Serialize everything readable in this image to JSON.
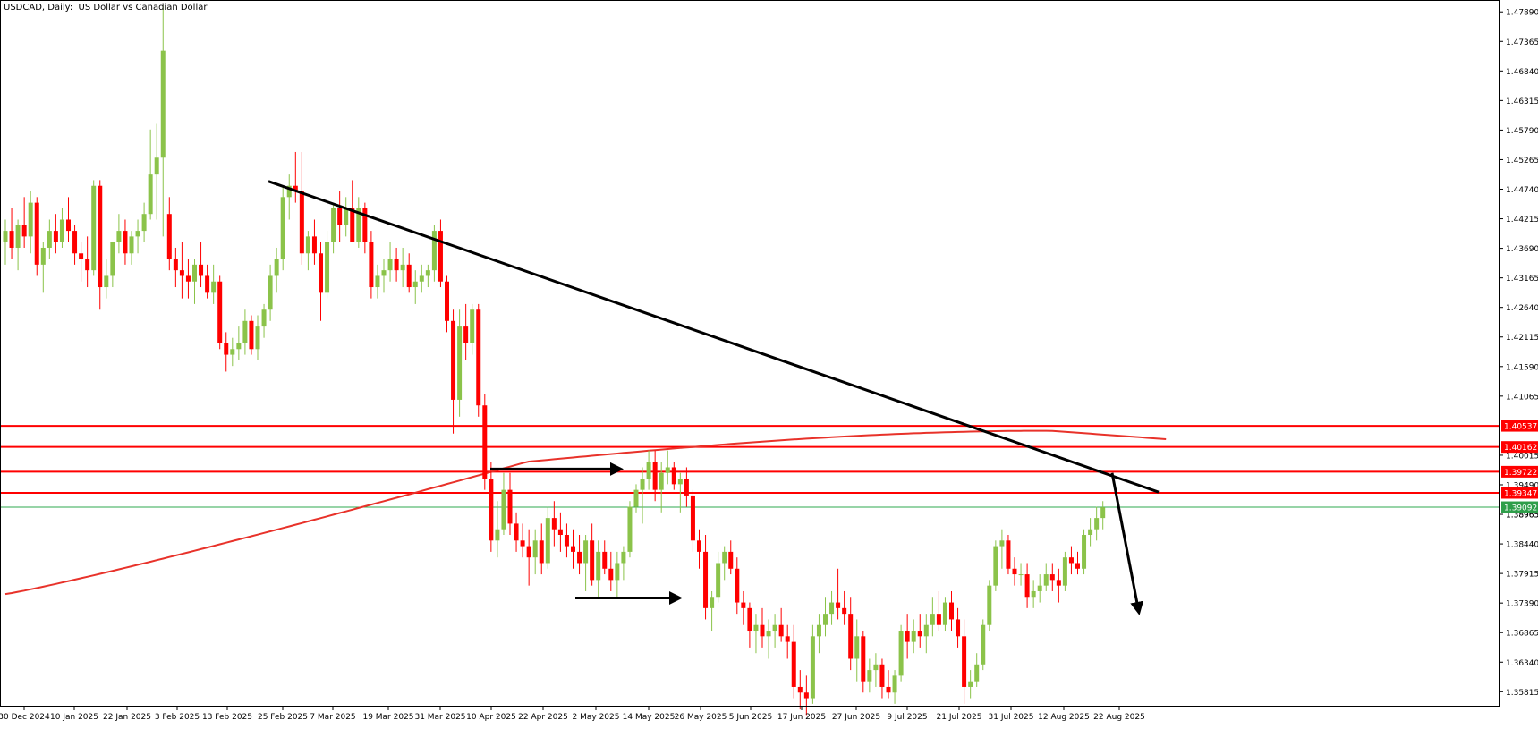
{
  "title": "USDCAD, Daily:  US Dollar vs Canadian Dollar",
  "colors": {
    "background": "#ffffff",
    "bull": "#8bc34a",
    "bear": "#ff0000",
    "wick": "#000000",
    "level_line": "#ff0000",
    "ma_line": "#e8322a",
    "current_price_line": "#2fa84f",
    "current_price_bg": "#2e9e4a",
    "trendline": "#000000",
    "axis_text": "#000000"
  },
  "chart_data": {
    "type": "candlestick",
    "symbol": "USDCAD",
    "timeframe": "Daily",
    "ylim": [
      1.3555,
      1.481
    ],
    "y_ticks": [
      "1.47890",
      "1.47365",
      "1.46840",
      "1.46315",
      "1.45790",
      "1.45265",
      "1.44740",
      "1.44215",
      "1.43690",
      "1.43165",
      "1.42640",
      "1.42115",
      "1.41590",
      "1.41065",
      "1.40015",
      "1.39490",
      "1.38965",
      "1.38440",
      "1.37915",
      "1.37390",
      "1.36865",
      "1.36340",
      "1.35815"
    ],
    "x_ticks": [
      "30 Dec 2024",
      "10 Jan 2025",
      "22 Jan 2025",
      "3 Feb 2025",
      "13 Feb 2025",
      "25 Feb 2025",
      "7 Mar 2025",
      "19 Mar 2025",
      "31 Mar 2025",
      "10 Apr 2025",
      "22 Apr 2025",
      "2 May 2025",
      "14 May 2025",
      "26 May 2025",
      "5 Jun 2025",
      "17 Jun 2025",
      "27 Jun 2025",
      "9 Jul 2025",
      "21 Jul 2025",
      "31 Jul 2025",
      "12 Aug 2025",
      "22 Aug 2025"
    ],
    "horizontal_levels": [
      "1.40537",
      "1.40162",
      "1.39722",
      "1.39347"
    ],
    "current_price": "1.39092",
    "hidden_tick_under_label": "1.38965",
    "candles": [
      {
        "o": 1.438,
        "h": 1.442,
        "l": 1.434,
        "c": 1.44
      },
      {
        "o": 1.44,
        "h": 1.444,
        "l": 1.435,
        "c": 1.437
      },
      {
        "o": 1.437,
        "h": 1.442,
        "l": 1.433,
        "c": 1.441
      },
      {
        "o": 1.441,
        "h": 1.446,
        "l": 1.437,
        "c": 1.439
      },
      {
        "o": 1.439,
        "h": 1.447,
        "l": 1.436,
        "c": 1.445
      },
      {
        "o": 1.445,
        "h": 1.446,
        "l": 1.432,
        "c": 1.434
      },
      {
        "o": 1.434,
        "h": 1.438,
        "l": 1.429,
        "c": 1.437
      },
      {
        "o": 1.437,
        "h": 1.442,
        "l": 1.435,
        "c": 1.44
      },
      {
        "o": 1.44,
        "h": 1.443,
        "l": 1.436,
        "c": 1.438
      },
      {
        "o": 1.438,
        "h": 1.444,
        "l": 1.437,
        "c": 1.442
      },
      {
        "o": 1.442,
        "h": 1.446,
        "l": 1.438,
        "c": 1.44
      },
      {
        "o": 1.44,
        "h": 1.441,
        "l": 1.434,
        "c": 1.436
      },
      {
        "o": 1.436,
        "h": 1.438,
        "l": 1.431,
        "c": 1.435
      },
      {
        "o": 1.435,
        "h": 1.439,
        "l": 1.43,
        "c": 1.433
      },
      {
        "o": 1.433,
        "h": 1.449,
        "l": 1.432,
        "c": 1.448
      },
      {
        "o": 1.448,
        "h": 1.449,
        "l": 1.426,
        "c": 1.43
      },
      {
        "o": 1.43,
        "h": 1.435,
        "l": 1.428,
        "c": 1.432
      },
      {
        "o": 1.432,
        "h": 1.438,
        "l": 1.43,
        "c": 1.438
      },
      {
        "o": 1.438,
        "h": 1.443,
        "l": 1.436,
        "c": 1.44
      },
      {
        "o": 1.44,
        "h": 1.442,
        "l": 1.434,
        "c": 1.436
      },
      {
        "o": 1.436,
        "h": 1.44,
        "l": 1.434,
        "c": 1.439
      },
      {
        "o": 1.439,
        "h": 1.442,
        "l": 1.436,
        "c": 1.44
      },
      {
        "o": 1.44,
        "h": 1.445,
        "l": 1.438,
        "c": 1.443
      },
      {
        "o": 1.443,
        "h": 1.458,
        "l": 1.442,
        "c": 1.45
      },
      {
        "o": 1.45,
        "h": 1.459,
        "l": 1.442,
        "c": 1.453
      },
      {
        "o": 1.453,
        "h": 1.48,
        "l": 1.439,
        "c": 1.472
      },
      {
        "o": 1.443,
        "h": 1.446,
        "l": 1.433,
        "c": 1.435
      },
      {
        "o": 1.435,
        "h": 1.437,
        "l": 1.43,
        "c": 1.433
      },
      {
        "o": 1.433,
        "h": 1.438,
        "l": 1.428,
        "c": 1.432
      },
      {
        "o": 1.432,
        "h": 1.435,
        "l": 1.428,
        "c": 1.431
      },
      {
        "o": 1.431,
        "h": 1.435,
        "l": 1.427,
        "c": 1.434
      },
      {
        "o": 1.434,
        "h": 1.438,
        "l": 1.43,
        "c": 1.432
      },
      {
        "o": 1.432,
        "h": 1.434,
        "l": 1.428,
        "c": 1.429
      },
      {
        "o": 1.429,
        "h": 1.434,
        "l": 1.427,
        "c": 1.431
      },
      {
        "o": 1.431,
        "h": 1.432,
        "l": 1.419,
        "c": 1.42
      },
      {
        "o": 1.42,
        "h": 1.422,
        "l": 1.415,
        "c": 1.418
      },
      {
        "o": 1.418,
        "h": 1.421,
        "l": 1.416,
        "c": 1.419
      },
      {
        "o": 1.419,
        "h": 1.423,
        "l": 1.417,
        "c": 1.42
      },
      {
        "o": 1.42,
        "h": 1.426,
        "l": 1.418,
        "c": 1.424
      },
      {
        "o": 1.424,
        "h": 1.425,
        "l": 1.418,
        "c": 1.419
      },
      {
        "o": 1.419,
        "h": 1.425,
        "l": 1.417,
        "c": 1.423
      },
      {
        "o": 1.423,
        "h": 1.427,
        "l": 1.421,
        "c": 1.426
      },
      {
        "o": 1.426,
        "h": 1.434,
        "l": 1.424,
        "c": 1.432
      },
      {
        "o": 1.432,
        "h": 1.437,
        "l": 1.429,
        "c": 1.435
      },
      {
        "o": 1.435,
        "h": 1.448,
        "l": 1.433,
        "c": 1.446
      },
      {
        "o": 1.446,
        "h": 1.45,
        "l": 1.442,
        "c": 1.448
      },
      {
        "o": 1.448,
        "h": 1.454,
        "l": 1.445,
        "c": 1.447
      },
      {
        "o": 1.447,
        "h": 1.454,
        "l": 1.434,
        "c": 1.436
      },
      {
        "o": 1.436,
        "h": 1.44,
        "l": 1.433,
        "c": 1.439
      },
      {
        "o": 1.439,
        "h": 1.442,
        "l": 1.434,
        "c": 1.436
      },
      {
        "o": 1.436,
        "h": 1.438,
        "l": 1.424,
        "c": 1.429
      },
      {
        "o": 1.429,
        "h": 1.44,
        "l": 1.428,
        "c": 1.438
      },
      {
        "o": 1.438,
        "h": 1.445,
        "l": 1.436,
        "c": 1.444
      },
      {
        "o": 1.444,
        "h": 1.447,
        "l": 1.438,
        "c": 1.441
      },
      {
        "o": 1.441,
        "h": 1.446,
        "l": 1.439,
        "c": 1.444
      },
      {
        "o": 1.444,
        "h": 1.449,
        "l": 1.438,
        "c": 1.438
      },
      {
        "o": 1.438,
        "h": 1.446,
        "l": 1.437,
        "c": 1.444
      },
      {
        "o": 1.444,
        "h": 1.445,
        "l": 1.436,
        "c": 1.438
      },
      {
        "o": 1.438,
        "h": 1.44,
        "l": 1.428,
        "c": 1.43
      },
      {
        "o": 1.43,
        "h": 1.434,
        "l": 1.428,
        "c": 1.432
      },
      {
        "o": 1.432,
        "h": 1.435,
        "l": 1.429,
        "c": 1.433
      },
      {
        "o": 1.433,
        "h": 1.438,
        "l": 1.431,
        "c": 1.435
      },
      {
        "o": 1.435,
        "h": 1.437,
        "l": 1.431,
        "c": 1.433
      },
      {
        "o": 1.433,
        "h": 1.437,
        "l": 1.43,
        "c": 1.434
      },
      {
        "o": 1.434,
        "h": 1.436,
        "l": 1.429,
        "c": 1.43
      },
      {
        "o": 1.43,
        "h": 1.433,
        "l": 1.427,
        "c": 1.431
      },
      {
        "o": 1.431,
        "h": 1.434,
        "l": 1.429,
        "c": 1.432
      },
      {
        "o": 1.432,
        "h": 1.434,
        "l": 1.43,
        "c": 1.433
      },
      {
        "o": 1.433,
        "h": 1.441,
        "l": 1.431,
        "c": 1.44
      },
      {
        "o": 1.44,
        "h": 1.442,
        "l": 1.43,
        "c": 1.431
      },
      {
        "o": 1.431,
        "h": 1.432,
        "l": 1.422,
        "c": 1.424
      },
      {
        "o": 1.424,
        "h": 1.426,
        "l": 1.404,
        "c": 1.41
      },
      {
        "o": 1.41,
        "h": 1.426,
        "l": 1.407,
        "c": 1.423
      },
      {
        "o": 1.423,
        "h": 1.427,
        "l": 1.417,
        "c": 1.42
      },
      {
        "o": 1.42,
        "h": 1.427,
        "l": 1.418,
        "c": 1.426
      },
      {
        "o": 1.426,
        "h": 1.427,
        "l": 1.407,
        "c": 1.409
      },
      {
        "o": 1.409,
        "h": 1.411,
        "l": 1.394,
        "c": 1.396
      },
      {
        "o": 1.396,
        "h": 1.399,
        "l": 1.383,
        "c": 1.385
      },
      {
        "o": 1.385,
        "h": 1.392,
        "l": 1.382,
        "c": 1.387
      },
      {
        "o": 1.387,
        "h": 1.397,
        "l": 1.386,
        "c": 1.394
      },
      {
        "o": 1.394,
        "h": 1.397,
        "l": 1.386,
        "c": 1.388
      },
      {
        "o": 1.388,
        "h": 1.39,
        "l": 1.383,
        "c": 1.385
      },
      {
        "o": 1.385,
        "h": 1.388,
        "l": 1.382,
        "c": 1.384
      },
      {
        "o": 1.384,
        "h": 1.387,
        "l": 1.377,
        "c": 1.382
      },
      {
        "o": 1.382,
        "h": 1.387,
        "l": 1.379,
        "c": 1.385
      },
      {
        "o": 1.385,
        "h": 1.388,
        "l": 1.379,
        "c": 1.381
      },
      {
        "o": 1.381,
        "h": 1.391,
        "l": 1.38,
        "c": 1.389
      },
      {
        "o": 1.389,
        "h": 1.392,
        "l": 1.384,
        "c": 1.387
      },
      {
        "o": 1.387,
        "h": 1.39,
        "l": 1.383,
        "c": 1.386
      },
      {
        "o": 1.386,
        "h": 1.388,
        "l": 1.382,
        "c": 1.384
      },
      {
        "o": 1.384,
        "h": 1.387,
        "l": 1.38,
        "c": 1.383
      },
      {
        "o": 1.383,
        "h": 1.386,
        "l": 1.379,
        "c": 1.381
      },
      {
        "o": 1.381,
        "h": 1.386,
        "l": 1.376,
        "c": 1.385
      },
      {
        "o": 1.385,
        "h": 1.388,
        "l": 1.377,
        "c": 1.378
      },
      {
        "o": 1.378,
        "h": 1.385,
        "l": 1.375,
        "c": 1.383
      },
      {
        "o": 1.383,
        "h": 1.385,
        "l": 1.379,
        "c": 1.38
      },
      {
        "o": 1.38,
        "h": 1.383,
        "l": 1.376,
        "c": 1.378
      },
      {
        "o": 1.378,
        "h": 1.383,
        "l": 1.375,
        "c": 1.381
      },
      {
        "o": 1.381,
        "h": 1.384,
        "l": 1.378,
        "c": 1.383
      },
      {
        "o": 1.383,
        "h": 1.392,
        "l": 1.382,
        "c": 1.391
      },
      {
        "o": 1.391,
        "h": 1.395,
        "l": 1.39,
        "c": 1.394
      },
      {
        "o": 1.394,
        "h": 1.398,
        "l": 1.388,
        "c": 1.396
      },
      {
        "o": 1.396,
        "h": 1.401,
        "l": 1.394,
        "c": 1.399
      },
      {
        "o": 1.399,
        "h": 1.401,
        "l": 1.392,
        "c": 1.394
      },
      {
        "o": 1.394,
        "h": 1.399,
        "l": 1.39,
        "c": 1.397
      },
      {
        "o": 1.397,
        "h": 1.401,
        "l": 1.395,
        "c": 1.398
      },
      {
        "o": 1.398,
        "h": 1.399,
        "l": 1.394,
        "c": 1.395
      },
      {
        "o": 1.395,
        "h": 1.397,
        "l": 1.39,
        "c": 1.396
      },
      {
        "o": 1.396,
        "h": 1.398,
        "l": 1.391,
        "c": 1.393
      },
      {
        "o": 1.393,
        "h": 1.394,
        "l": 1.383,
        "c": 1.385
      },
      {
        "o": 1.385,
        "h": 1.387,
        "l": 1.38,
        "c": 1.383
      },
      {
        "o": 1.383,
        "h": 1.386,
        "l": 1.371,
        "c": 1.373
      },
      {
        "o": 1.373,
        "h": 1.376,
        "l": 1.369,
        "c": 1.375
      },
      {
        "o": 1.375,
        "h": 1.383,
        "l": 1.374,
        "c": 1.381
      },
      {
        "o": 1.381,
        "h": 1.384,
        "l": 1.378,
        "c": 1.383
      },
      {
        "o": 1.383,
        "h": 1.385,
        "l": 1.379,
        "c": 1.38
      },
      {
        "o": 1.38,
        "h": 1.382,
        "l": 1.372,
        "c": 1.374
      },
      {
        "o": 1.374,
        "h": 1.376,
        "l": 1.37,
        "c": 1.373
      },
      {
        "o": 1.373,
        "h": 1.374,
        "l": 1.366,
        "c": 1.369
      },
      {
        "o": 1.369,
        "h": 1.372,
        "l": 1.365,
        "c": 1.37
      },
      {
        "o": 1.37,
        "h": 1.373,
        "l": 1.366,
        "c": 1.368
      },
      {
        "o": 1.368,
        "h": 1.371,
        "l": 1.364,
        "c": 1.369
      },
      {
        "o": 1.369,
        "h": 1.372,
        "l": 1.366,
        "c": 1.37
      },
      {
        "o": 1.37,
        "h": 1.373,
        "l": 1.367,
        "c": 1.368
      },
      {
        "o": 1.368,
        "h": 1.37,
        "l": 1.364,
        "c": 1.367
      },
      {
        "o": 1.367,
        "h": 1.37,
        "l": 1.357,
        "c": 1.359
      },
      {
        "o": 1.359,
        "h": 1.362,
        "l": 1.355,
        "c": 1.358
      },
      {
        "o": 1.358,
        "h": 1.361,
        "l": 1.354,
        "c": 1.357
      },
      {
        "o": 1.357,
        "h": 1.37,
        "l": 1.356,
        "c": 1.368
      },
      {
        "o": 1.368,
        "h": 1.372,
        "l": 1.365,
        "c": 1.37
      },
      {
        "o": 1.37,
        "h": 1.375,
        "l": 1.368,
        "c": 1.372
      },
      {
        "o": 1.372,
        "h": 1.376,
        "l": 1.37,
        "c": 1.374
      },
      {
        "o": 1.374,
        "h": 1.38,
        "l": 1.371,
        "c": 1.373
      },
      {
        "o": 1.373,
        "h": 1.376,
        "l": 1.37,
        "c": 1.372
      },
      {
        "o": 1.372,
        "h": 1.375,
        "l": 1.362,
        "c": 1.364
      },
      {
        "o": 1.364,
        "h": 1.371,
        "l": 1.36,
        "c": 1.368
      },
      {
        "o": 1.368,
        "h": 1.369,
        "l": 1.358,
        "c": 1.36
      },
      {
        "o": 1.36,
        "h": 1.364,
        "l": 1.358,
        "c": 1.362
      },
      {
        "o": 1.362,
        "h": 1.365,
        "l": 1.359,
        "c": 1.363
      },
      {
        "o": 1.363,
        "h": 1.364,
        "l": 1.357,
        "c": 1.359
      },
      {
        "o": 1.359,
        "h": 1.362,
        "l": 1.357,
        "c": 1.358
      },
      {
        "o": 1.358,
        "h": 1.362,
        "l": 1.356,
        "c": 1.361
      },
      {
        "o": 1.361,
        "h": 1.37,
        "l": 1.36,
        "c": 1.369
      },
      {
        "o": 1.369,
        "h": 1.372,
        "l": 1.364,
        "c": 1.367
      },
      {
        "o": 1.367,
        "h": 1.371,
        "l": 1.365,
        "c": 1.369
      },
      {
        "o": 1.369,
        "h": 1.372,
        "l": 1.366,
        "c": 1.368
      },
      {
        "o": 1.368,
        "h": 1.372,
        "l": 1.365,
        "c": 1.37
      },
      {
        "o": 1.37,
        "h": 1.375,
        "l": 1.368,
        "c": 1.372
      },
      {
        "o": 1.372,
        "h": 1.376,
        "l": 1.369,
        "c": 1.37
      },
      {
        "o": 1.37,
        "h": 1.375,
        "l": 1.369,
        "c": 1.374
      },
      {
        "o": 1.374,
        "h": 1.376,
        "l": 1.369,
        "c": 1.371
      },
      {
        "o": 1.371,
        "h": 1.373,
        "l": 1.366,
        "c": 1.368
      },
      {
        "o": 1.368,
        "h": 1.371,
        "l": 1.356,
        "c": 1.359
      },
      {
        "o": 1.359,
        "h": 1.362,
        "l": 1.357,
        "c": 1.36
      },
      {
        "o": 1.36,
        "h": 1.365,
        "l": 1.359,
        "c": 1.363
      },
      {
        "o": 1.363,
        "h": 1.371,
        "l": 1.362,
        "c": 1.37
      },
      {
        "o": 1.37,
        "h": 1.378,
        "l": 1.369,
        "c": 1.377
      },
      {
        "o": 1.377,
        "h": 1.385,
        "l": 1.376,
        "c": 1.384
      },
      {
        "o": 1.384,
        "h": 1.387,
        "l": 1.38,
        "c": 1.385
      },
      {
        "o": 1.385,
        "h": 1.386,
        "l": 1.379,
        "c": 1.38
      },
      {
        "o": 1.38,
        "h": 1.382,
        "l": 1.377,
        "c": 1.379
      },
      {
        "o": 1.379,
        "h": 1.381,
        "l": 1.377,
        "c": 1.379
      },
      {
        "o": 1.379,
        "h": 1.381,
        "l": 1.373,
        "c": 1.375
      },
      {
        "o": 1.375,
        "h": 1.378,
        "l": 1.373,
        "c": 1.376
      },
      {
        "o": 1.376,
        "h": 1.379,
        "l": 1.374,
        "c": 1.377
      },
      {
        "o": 1.377,
        "h": 1.381,
        "l": 1.376,
        "c": 1.379
      },
      {
        "o": 1.379,
        "h": 1.381,
        "l": 1.376,
        "c": 1.378
      },
      {
        "o": 1.378,
        "h": 1.38,
        "l": 1.374,
        "c": 1.377
      },
      {
        "o": 1.377,
        "h": 1.383,
        "l": 1.376,
        "c": 1.382
      },
      {
        "o": 1.382,
        "h": 1.384,
        "l": 1.379,
        "c": 1.381
      },
      {
        "o": 1.381,
        "h": 1.383,
        "l": 1.379,
        "c": 1.38
      },
      {
        "o": 1.38,
        "h": 1.387,
        "l": 1.379,
        "c": 1.386
      },
      {
        "o": 1.386,
        "h": 1.389,
        "l": 1.384,
        "c": 1.387
      },
      {
        "o": 1.387,
        "h": 1.391,
        "l": 1.385,
        "c": 1.389
      },
      {
        "o": 1.389,
        "h": 1.392,
        "l": 1.387,
        "c": 1.3909
      }
    ]
  }
}
